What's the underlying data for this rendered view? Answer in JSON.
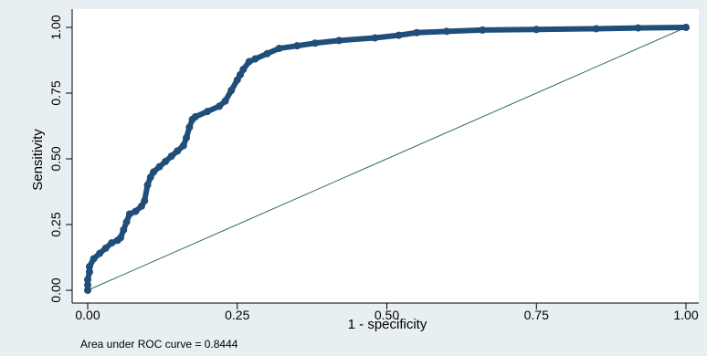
{
  "chart_data": {
    "type": "line",
    "xlabel": "1 - specificity",
    "ylabel": "Sensitivity",
    "xlim": [
      0,
      1
    ],
    "ylim": [
      0,
      1
    ],
    "x_ticks": [
      "0.00",
      "0.25",
      "0.50",
      "0.75",
      "1.00"
    ],
    "y_ticks": [
      "0.00",
      "0.25",
      "0.50",
      "0.75",
      "1.00"
    ],
    "grid": false,
    "note": "Area under ROC curve = 0.8444",
    "colors": {
      "curve": "#1f4e79",
      "reference": "#2e6b63",
      "outer_background": "#e8eff3",
      "plot_background": "#ffffff"
    },
    "series": [
      {
        "values": [
          [
            0.0,
            0.0
          ],
          [
            0.0,
            0.02
          ],
          [
            0.0,
            0.04
          ],
          [
            0.003,
            0.07
          ],
          [
            0.003,
            0.09
          ],
          [
            0.01,
            0.12
          ],
          [
            0.02,
            0.14
          ],
          [
            0.03,
            0.16
          ],
          [
            0.04,
            0.18
          ],
          [
            0.05,
            0.19
          ],
          [
            0.055,
            0.2
          ],
          [
            0.06,
            0.23
          ],
          [
            0.065,
            0.26
          ],
          [
            0.07,
            0.29
          ],
          [
            0.08,
            0.3
          ],
          [
            0.09,
            0.32
          ],
          [
            0.095,
            0.34
          ],
          [
            0.1,
            0.4
          ],
          [
            0.105,
            0.43
          ],
          [
            0.11,
            0.45
          ],
          [
            0.12,
            0.47
          ],
          [
            0.13,
            0.49
          ],
          [
            0.14,
            0.51
          ],
          [
            0.15,
            0.53
          ],
          [
            0.16,
            0.55
          ],
          [
            0.165,
            0.58
          ],
          [
            0.17,
            0.62
          ],
          [
            0.175,
            0.65
          ],
          [
            0.18,
            0.66
          ],
          [
            0.2,
            0.68
          ],
          [
            0.22,
            0.7
          ],
          [
            0.23,
            0.72
          ],
          [
            0.24,
            0.76
          ],
          [
            0.25,
            0.8
          ],
          [
            0.255,
            0.82
          ],
          [
            0.26,
            0.84
          ],
          [
            0.27,
            0.87
          ],
          [
            0.28,
            0.88
          ],
          [
            0.3,
            0.9
          ],
          [
            0.32,
            0.92
          ],
          [
            0.35,
            0.93
          ],
          [
            0.38,
            0.94
          ],
          [
            0.42,
            0.95
          ],
          [
            0.48,
            0.96
          ],
          [
            0.52,
            0.97
          ],
          [
            0.55,
            0.98
          ],
          [
            0.6,
            0.985
          ],
          [
            0.66,
            0.99
          ],
          [
            0.75,
            0.992
          ],
          [
            0.85,
            0.995
          ],
          [
            0.92,
            0.998
          ],
          [
            1.0,
            1.0
          ]
        ]
      },
      {
        "values": [
          [
            0,
            0
          ],
          [
            1,
            1
          ]
        ]
      }
    ]
  }
}
